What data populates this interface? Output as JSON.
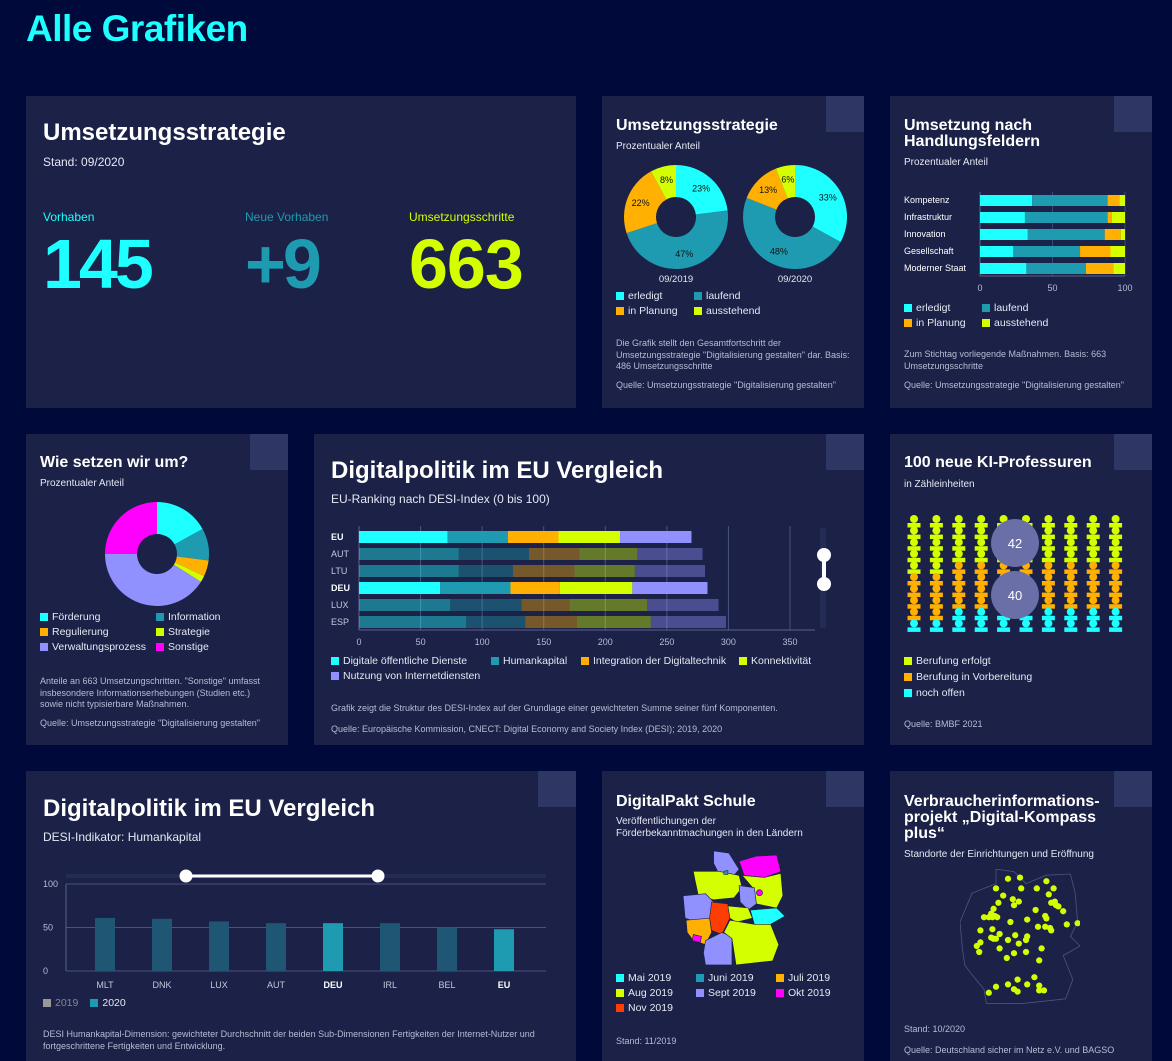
{
  "page": {
    "title": "Alle Grafiken"
  },
  "colors": {
    "cyan": "#1effff",
    "teal": "#1e9bb0",
    "orange": "#ffb000",
    "yellow": "#d4ff00",
    "lavender": "#9090ff",
    "magenta": "#ff00ff",
    "red": "#ff3d00",
    "card": "#1b2147",
    "bg": "#000a3a"
  },
  "kpi": {
    "title": "Umsetzungsstrategie",
    "stand": "Stand: 09/2020",
    "items": [
      {
        "label": "Vorhaben",
        "value": "145",
        "color": "#1effff"
      },
      {
        "label": "Neue Vorhaben",
        "value": "+9",
        "color": "#1e9bb0"
      },
      {
        "label": "Umsetzungsschritte",
        "value": "663",
        "color": "#d4ff00"
      }
    ]
  },
  "strategie": {
    "title": "Umsetzungsstrategie",
    "subtitle": "Prozentualer Anteil",
    "note": "Die Grafik stellt den Gesamtfortschritt der Umsetzungsstrategie \"Digitalisierung gestalten\" dar. Basis: 486 Umsetzungsschritte",
    "source": "Quelle: Umsetzungsstrategie \"Digitalisierung gestalten\"",
    "legend": [
      {
        "label": "erledigt",
        "color": "#1effff"
      },
      {
        "label": "laufend",
        "color": "#1e9bb0"
      },
      {
        "label": "in Planung",
        "color": "#ffb000"
      },
      {
        "label": "ausstehend",
        "color": "#d4ff00"
      }
    ]
  },
  "handlungsfelder": {
    "title": "Umsetzung nach Handlungsfeldern",
    "subtitle": "Prozentualer Anteil",
    "note": "Zum Stichtag vorliegende Maßnahmen. Basis: 663 Umsetzungsschritte",
    "source": "Quelle: Umsetzungsstrategie \"Digitalisierung gestalten\"",
    "legend": [
      {
        "label": "erledigt",
        "color": "#1effff"
      },
      {
        "label": "laufend",
        "color": "#1e9bb0"
      },
      {
        "label": "in Planung",
        "color": "#ffb000"
      },
      {
        "label": "ausstehend",
        "color": "#d4ff00"
      }
    ]
  },
  "wie": {
    "title": "Wie setzen wir um?",
    "subtitle": "Prozentualer Anteil",
    "note": "Anteile an 663 Umsetzungschritten. \"Sonstige\" umfasst insbesondere Informationserhebungen (Studien etc.) sowie nicht typisierbare Maßnahmen.",
    "source": "Quelle: Umsetzungsstrategie \"Digitalisierung gestalten\"",
    "legend": [
      {
        "label": "Förderung",
        "color": "#1effff"
      },
      {
        "label": "Information",
        "color": "#1e9bb0"
      },
      {
        "label": "Regulierung",
        "color": "#ffb000"
      },
      {
        "label": "Strategie",
        "color": "#d4ff00"
      },
      {
        "label": "Verwaltungsprozess",
        "color": "#9090ff"
      },
      {
        "label": "Sonstige",
        "color": "#ff00ff"
      }
    ]
  },
  "desi": {
    "title": "Digitalpolitik im EU Vergleich",
    "subtitle": "EU-Ranking nach DESI-Index (0 bis 100)",
    "note": "Grafik zeigt die Struktur des DESI-Index auf der Grundlage einer gewichteten Summe seiner fünf Komponenten.",
    "source": "Quelle: Europäische Kommission, CNECT: Digital Economy and Society Index (DESI); 2019, 2020",
    "legend": [
      {
        "label": "Digitale öffentliche Dienste",
        "color": "#1effff"
      },
      {
        "label": "Humankapital",
        "color": "#1e9bb0"
      },
      {
        "label": "Integration der Digitaltechnik",
        "color": "#ffb000"
      },
      {
        "label": "Konnektivität",
        "color": "#d4ff00"
      },
      {
        "label": "Nutzung von Internetdiensten",
        "color": "#9090ff"
      }
    ]
  },
  "ki": {
    "title": "100 neue KI-Professuren",
    "subtitle": "in Zähleinheiten",
    "source": "Quelle: BMBF 2021",
    "bubbles": [
      "42",
      "40"
    ],
    "legend": [
      {
        "label": "Berufung erfolgt",
        "color": "#d4ff00"
      },
      {
        "label": "Berufung in Vorbereitung",
        "color": "#ffb000"
      },
      {
        "label": "noch offen",
        "color": "#1effff"
      }
    ]
  },
  "humankapital": {
    "title": "Digitalpolitik im EU Vergleich",
    "subtitle": "DESI-Indikator: Humankapital",
    "note": "DESI Humankapital-Dimension: gewichteter Durchschnitt der beiden Sub-Dimensionen Fertigkeiten der Internet-Nutzer und fortgeschrittene Fertigkeiten und Entwicklung.",
    "legend": [
      {
        "label": "2019",
        "color": "#999999"
      },
      {
        "label": "2020",
        "color": "#1e9bb0"
      }
    ]
  },
  "digitalpakt": {
    "title": "DigitalPakt Schule",
    "subtitle": "Veröffentlichungen der Förderbekanntmachungen in den Ländern",
    "stand": "Stand: 11/2019",
    "legend": [
      {
        "label": "Mai 2019",
        "color": "#1effff"
      },
      {
        "label": "Juni 2019",
        "color": "#1e9bb0"
      },
      {
        "label": "Juli 2019",
        "color": "#ffb000"
      },
      {
        "label": "Aug 2019",
        "color": "#d4ff00"
      },
      {
        "label": "Sept 2019",
        "color": "#9090ff"
      },
      {
        "label": "Okt 2019",
        "color": "#ff00ff"
      },
      {
        "label": "Nov 2019",
        "color": "#ff3d00"
      }
    ]
  },
  "kompass": {
    "title": "Verbraucherinformations-projekt „Digital-Kompass plus“",
    "subtitle": "Standorte der Einrichtungen und Eröffnung",
    "stand": "Stand: 10/2020",
    "source": "Quelle: Deutschland sicher im Netz e.V. und BAGSO"
  },
  "chart_data": [
    {
      "id": "strategie",
      "type": "pie",
      "categories": [
        "erledigt",
        "laufend",
        "in Planung",
        "ausstehend"
      ],
      "series": [
        {
          "name": "09/2019",
          "values": [
            23,
            47,
            22,
            8
          ]
        },
        {
          "name": "09/2020",
          "values": [
            33,
            48,
            13,
            6
          ]
        }
      ]
    },
    {
      "id": "handlungsfelder",
      "type": "bar",
      "stacked": true,
      "orientation": "horizontal",
      "categories": [
        "Kompetenz",
        "Infrastruktur",
        "Innovation",
        "Gesellschaft",
        "Moderner Staat"
      ],
      "series": [
        {
          "name": "erledigt",
          "values": [
            36,
            31,
            33,
            23,
            32
          ]
        },
        {
          "name": "laufend",
          "values": [
            52,
            57,
            53,
            46,
            41
          ]
        },
        {
          "name": "in Planung",
          "values": [
            8,
            3,
            11,
            21,
            19
          ]
        },
        {
          "name": "ausstehend",
          "values": [
            4,
            9,
            3,
            10,
            8
          ]
        }
      ],
      "xlim": [
        0,
        100
      ],
      "xticks": [
        0,
        50,
        100
      ]
    },
    {
      "id": "wie",
      "type": "pie",
      "categories": [
        "Förderung",
        "Information",
        "Regulierung",
        "Strategie",
        "Verwaltungsprozess",
        "Sonstige"
      ],
      "values": [
        17,
        10,
        5,
        2,
        41,
        25
      ]
    },
    {
      "id": "desi",
      "type": "bar",
      "stacked": true,
      "orientation": "horizontal",
      "categories": [
        "EU",
        "AUT",
        "LTU",
        "DEU",
        "LUX",
        "ESP"
      ],
      "highlight": [
        "EU",
        "DEU"
      ],
      "series": [
        {
          "name": "Digitale öffentliche Dienste",
          "values": [
            72,
            81,
            81,
            66,
            74,
            87
          ]
        },
        {
          "name": "Humankapital",
          "values": [
            49,
            57,
            44,
            57,
            58,
            48
          ]
        },
        {
          "name": "Integration der Digitaltechnik",
          "values": [
            41,
            41,
            50,
            40,
            39,
            42
          ]
        },
        {
          "name": "Konnektivität",
          "values": [
            50,
            47,
            49,
            59,
            63,
            60
          ]
        },
        {
          "name": "Nutzung von Internetdiensten",
          "values": [
            58,
            53,
            57,
            61,
            58,
            61
          ]
        }
      ],
      "xlim": [
        0,
        370
      ],
      "xticks": [
        0,
        50,
        100,
        150,
        200,
        250,
        300,
        350
      ]
    },
    {
      "id": "ki",
      "type": "table",
      "categories": [
        "Berufung erfolgt",
        "Berufung in Vorbereitung",
        "noch offen"
      ],
      "values": [
        42,
        40,
        18
      ]
    },
    {
      "id": "humankapital",
      "type": "bar",
      "categories": [
        "MLT",
        "DNK",
        "LUX",
        "AUT",
        "DEU",
        "IRL",
        "BEL",
        "EU"
      ],
      "highlight": [
        "DEU",
        "EU"
      ],
      "series": [
        {
          "name": "2020",
          "values": [
            61,
            60,
            57,
            55,
            55,
            55,
            50,
            48
          ]
        }
      ],
      "ylim": [
        0,
        100
      ],
      "yticks": [
        0,
        50,
        100
      ]
    }
  ]
}
